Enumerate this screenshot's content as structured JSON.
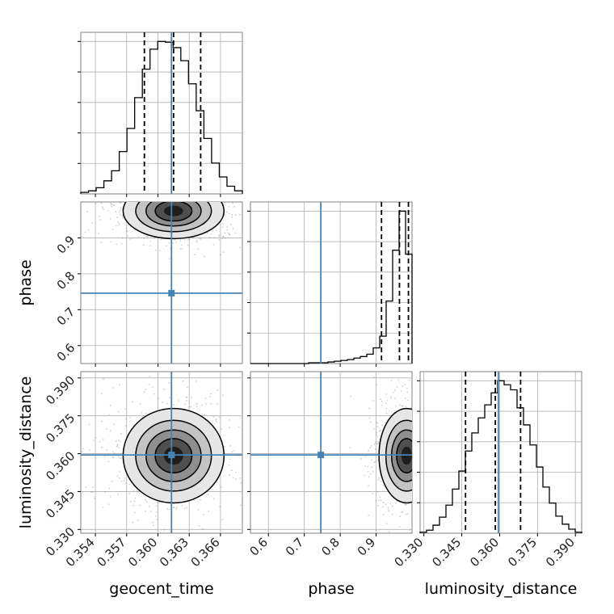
{
  "colors": {
    "truth": "#4682b4",
    "hist": "#000000",
    "quantile": "#000000",
    "grid": "#b0b0b0",
    "frame": "#808080"
  },
  "chart_data": {
    "type": "corner",
    "parameters": [
      "geocent_time",
      "phase",
      "luminosity_distance"
    ],
    "truths": {
      "geocent_time": 0.3613,
      "phase": 0.746,
      "luminosity_distance": 0.3595
    },
    "quantiles": {
      "geocent_time": [
        0.3587,
        0.3615,
        0.3641
      ],
      "phase": [
        0.915,
        0.965,
        0.99
      ],
      "luminosity_distance": [
        0.3465,
        0.3583,
        0.3683
      ]
    },
    "ranges": {
      "geocent_time": [
        0.3526,
        0.3681
      ],
      "phase": [
        0.55,
        1.0
      ],
      "luminosity_distance": [
        0.3285,
        0.3925
      ]
    },
    "tick_labels": {
      "geocent_time": [
        "0.354",
        "0.357",
        "0.360",
        "0.363",
        "0.366"
      ],
      "phase": [
        "0.6",
        "0.7",
        "0.8",
        "0.9"
      ],
      "luminosity_distance": [
        "0.330",
        "0.345",
        "0.360",
        "0.375",
        "0.390"
      ]
    },
    "tick_values": {
      "geocent_time": [
        0.354,
        0.357,
        0.36,
        0.363,
        0.366
      ],
      "phase": [
        0.6,
        0.7,
        0.8,
        0.9
      ],
      "luminosity_distance": [
        0.33,
        0.345,
        0.36,
        0.375,
        0.39
      ]
    },
    "histograms": {
      "geocent_time": {
        "edges_range": [
          0.3526,
          0.3681
        ],
        "counts": [
          2,
          4,
          8,
          17,
          30,
          55,
          85,
          125,
          162,
          188,
          198,
          197,
          190,
          173,
          143,
          108,
          72,
          40,
          22,
          10,
          4
        ]
      },
      "phase": {
        "edges_range": [
          0.55,
          1.0
        ],
        "counts": [
          0,
          0,
          0,
          0,
          0,
          0,
          0,
          0,
          0,
          1,
          1,
          1,
          2,
          3,
          4,
          5,
          7,
          9,
          12,
          20,
          35,
          80,
          145,
          195,
          140
        ]
      },
      "luminosity_distance": {
        "edges_range": [
          0.3285,
          0.3925
        ],
        "counts": [
          1,
          3,
          8,
          16,
          28,
          44,
          62,
          82,
          100,
          115,
          128,
          140,
          152,
          148,
          143,
          125,
          108,
          88,
          66,
          46,
          30,
          17,
          9,
          4,
          1
        ]
      }
    },
    "grid": true,
    "xlabel_rotation_deg": 45
  }
}
